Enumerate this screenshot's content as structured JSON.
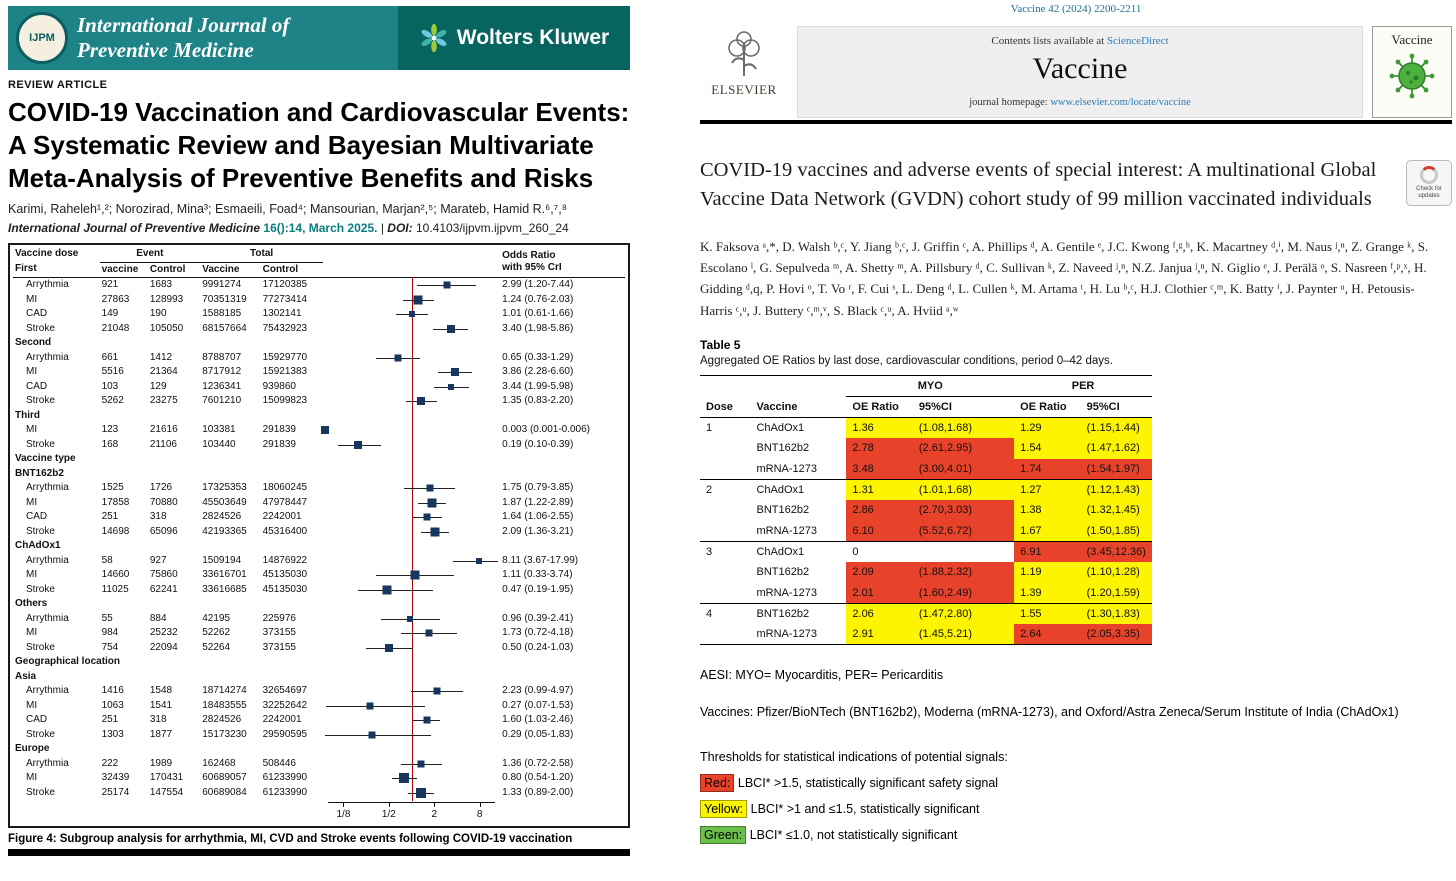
{
  "left_page": {
    "banner": {
      "logo_text": "IJPM",
      "journal_name_line1": "International Journal of",
      "journal_name_line2": "Preventive Medicine",
      "publisher": "Wolters Kluwer"
    },
    "article_type": "REVIEW ARTICLE",
    "title": "COVID-19 Vaccination and Cardiovascular Events: A Systematic Review and Bayesian Multivariate Meta-Analysis of Preventive Benefits and Risks",
    "authors": "Karimi, Raheleh¹,²; Norozirad, Mina³; Esmaeili, Foad⁴; Mansourian, Marjan²,⁵; Marateb, Hamid R.⁶,⁷,⁸",
    "citation_journal": "International Journal of Preventive Medicine",
    "citation_issue": "16():14, March 2025.",
    "citation_sep": "|",
    "citation_doi_label": "DOI:",
    "citation_doi": "10.4103/ijpvm.ijpvm_260_24",
    "caption_label": "Figure 4:",
    "caption_text": "Subgroup analysis for arrhythmia, MI, CVD and Stroke events following COVID-19 vaccination",
    "figure": {
      "col_headers": [
        "Vaccine dose",
        "Event",
        "Total"
      ],
      "or_header_line1": "Odds Ratio",
      "or_header_line2": "with 95% CrI",
      "sub_headers": [
        "vaccine",
        "Control",
        "Vaccine",
        "Control"
      ],
      "axis": {
        "ticks": [
          {
            "label": "1/8",
            "v": 0.125
          },
          {
            "label": "1/2",
            "v": 0.5
          },
          {
            "label": "2",
            "v": 2
          },
          {
            "label": "8",
            "v": 8
          }
        ]
      },
      "groups": [
        {
          "label": "First",
          "rows": [
            {
              "event": "Arrythmia",
              "vaccine": "921",
              "control": "1683",
              "total_vaccine": "9991274",
              "total_control": "17120385",
              "or_text": "2.99 (1.20-7.44)",
              "or": 2.99,
              "lo": 1.2,
              "hi": 7.44,
              "sz": 7
            },
            {
              "event": "MI",
              "vaccine": "27863",
              "control": "128993",
              "total_vaccine": "70351319",
              "total_control": "77273414",
              "or_text": "1.24 (0.76-2.03)",
              "or": 1.24,
              "lo": 0.76,
              "hi": 2.03,
              "sz": 9
            },
            {
              "event": "CAD",
              "vaccine": "149",
              "control": "190",
              "total_vaccine": "1588185",
              "total_control": "1302141",
              "or_text": "1.01 (0.61-1.66)",
              "or": 1.01,
              "lo": 0.61,
              "hi": 1.66,
              "sz": 6
            },
            {
              "event": "Stroke",
              "vaccine": "21048",
              "control": "105050",
              "total_vaccine": "68157664",
              "total_control": "75432923",
              "or_text": "3.40 (1.98-5.86)",
              "or": 3.4,
              "lo": 1.98,
              "hi": 5.86,
              "sz": 8
            }
          ]
        },
        {
          "label": "Second",
          "rows": [
            {
              "event": "Arrythmia",
              "vaccine": "661",
              "control": "1412",
              "total_vaccine": "8788707",
              "total_control": "15929770",
              "or_text": "0.65 (0.33-1.29)",
              "or": 0.65,
              "lo": 0.33,
              "hi": 1.29,
              "sz": 7
            },
            {
              "event": "MI",
              "vaccine": "5516",
              "control": "21364",
              "total_vaccine": "8717912",
              "total_control": "15921383",
              "or_text": "3.86 (2.28-6.60)",
              "or": 3.86,
              "lo": 2.28,
              "hi": 6.6,
              "sz": 8
            },
            {
              "event": "CAD",
              "vaccine": "103",
              "control": "129",
              "total_vaccine": "1236341",
              "total_control": "939860",
              "or_text": "3.44 (1.99-5.98)",
              "or": 3.44,
              "lo": 1.99,
              "hi": 5.98,
              "sz": 6
            },
            {
              "event": "Stroke",
              "vaccine": "5262",
              "control": "23275",
              "total_vaccine": "7601210",
              "total_control": "15099823",
              "or_text": "1.35 (0.83-2.20)",
              "or": 1.35,
              "lo": 0.83,
              "hi": 2.2,
              "sz": 8
            }
          ]
        },
        {
          "label": "Third",
          "rows": [
            {
              "event": "MI",
              "vaccine": "123",
              "control": "21616",
              "total_vaccine": "103381",
              "total_control": "291839",
              "or_text": "0.003 (0.001-0.006)",
              "or": 0.003,
              "lo": 0.001,
              "hi": 0.006,
              "sz": 8
            },
            {
              "event": "Stroke",
              "vaccine": "168",
              "control": "21106",
              "total_vaccine": "103440",
              "total_control": "291839",
              "or_text": "0.19 (0.10-0.39)",
              "or": 0.19,
              "lo": 0.1,
              "hi": 0.39,
              "sz": 8
            }
          ]
        },
        {
          "label": "Vaccine type",
          "rows": []
        },
        {
          "label": "BNT162b2",
          "rows": [
            {
              "event": "Arrythmia",
              "vaccine": "1525",
              "control": "1726",
              "total_vaccine": "17325353",
              "total_control": "18060245",
              "or_text": "1.75 (0.79-3.85)",
              "or": 1.75,
              "lo": 0.79,
              "hi": 3.85,
              "sz": 7
            },
            {
              "event": "MI",
              "vaccine": "17858",
              "control": "70880",
              "total_vaccine": "45503649",
              "total_control": "47978447",
              "or_text": "1.87 (1.22-2.89)",
              "or": 1.87,
              "lo": 1.22,
              "hi": 2.89,
              "sz": 9
            },
            {
              "event": "CAD",
              "vaccine": "251",
              "control": "318",
              "total_vaccine": "2824526",
              "total_control": "2242001",
              "or_text": "1.64 (1.06-2.55)",
              "or": 1.64,
              "lo": 1.06,
              "hi": 2.55,
              "sz": 7
            },
            {
              "event": "Stroke",
              "vaccine": "14698",
              "control": "65096",
              "total_vaccine": "42193365",
              "total_control": "45316400",
              "or_text": "2.09 (1.36-3.21)",
              "or": 2.09,
              "lo": 1.36,
              "hi": 3.21,
              "sz": 9
            }
          ]
        },
        {
          "label": "ChAdOx1",
          "rows": [
            {
              "event": "Arrythmia",
              "vaccine": "58",
              "control": "927",
              "total_vaccine": "1509194",
              "total_control": "14876922",
              "or_text": "8.11 (3.67-17.99)",
              "or": 8.11,
              "lo": 3.67,
              "hi": 17.99,
              "sz": 6
            },
            {
              "event": "MI",
              "vaccine": "14660",
              "control": "75860",
              "total_vaccine": "33616701",
              "total_control": "45135030",
              "or_text": "1.11 (0.33-3.74)",
              "or": 1.11,
              "lo": 0.33,
              "hi": 3.74,
              "sz": 9
            },
            {
              "event": "Stroke",
              "vaccine": "11025",
              "control": "62241",
              "total_vaccine": "33616685",
              "total_control": "45135030",
              "or_text": "0.47 (0.19-1.95)",
              "or": 0.47,
              "lo": 0.19,
              "hi": 1.95,
              "sz": 9
            }
          ]
        },
        {
          "label": "Others",
          "rows": [
            {
              "event": "Arrythmia",
              "vaccine": "55",
              "control": "884",
              "total_vaccine": "42195",
              "total_control": "225976",
              "or_text": "0.96 (0.39-2.41)",
              "or": 0.96,
              "lo": 0.39,
              "hi": 2.41,
              "sz": 6
            },
            {
              "event": "MI",
              "vaccine": "984",
              "control": "25232",
              "total_vaccine": "52262",
              "total_control": "373155",
              "or_text": "1.73 (0.72-4.18)",
              "or": 1.73,
              "lo": 0.72,
              "hi": 4.18,
              "sz": 7
            },
            {
              "event": "Stroke",
              "vaccine": "754",
              "control": "22094",
              "total_vaccine": "52264",
              "total_control": "373155",
              "or_text": "0.50 (0.24-1.03)",
              "or": 0.5,
              "lo": 0.24,
              "hi": 1.03,
              "sz": 8
            }
          ]
        },
        {
          "label": "Geographical location",
          "rows": []
        },
        {
          "label": "Asia",
          "rows": [
            {
              "event": "Arrythmia",
              "vaccine": "1416",
              "control": "1548",
              "total_vaccine": "18714274",
              "total_control": "32654697",
              "or_text": "2.23 (0.99-4.97)",
              "or": 2.23,
              "lo": 0.99,
              "hi": 4.97,
              "sz": 7
            },
            {
              "event": "MI",
              "vaccine": "1063",
              "control": "1541",
              "total_vaccine": "18483555",
              "total_control": "32252642",
              "or_text": "0.27 (0.07-1.53)",
              "or": 0.27,
              "lo": 0.07,
              "hi": 1.53,
              "sz": 7
            },
            {
              "event": "CAD",
              "vaccine": "251",
              "control": "318",
              "total_vaccine": "2824526",
              "total_control": "2242001",
              "or_text": "1.60 (1.03-2.46)",
              "or": 1.6,
              "lo": 1.03,
              "hi": 2.46,
              "sz": 7
            },
            {
              "event": "Stroke",
              "vaccine": "1303",
              "control": "1877",
              "total_vaccine": "15173230",
              "total_control": "29590595",
              "or_text": "0.29 (0.05-1.83)",
              "or": 0.29,
              "lo": 0.05,
              "hi": 1.83,
              "sz": 7
            }
          ]
        },
        {
          "label": "Europe",
          "rows": [
            {
              "event": "Arrythmia",
              "vaccine": "222",
              "control": "1989",
              "total_vaccine": "162468",
              "total_control": "508446",
              "or_text": "1.36 (0.72-2.58)",
              "or": 1.36,
              "lo": 0.72,
              "hi": 2.58,
              "sz": 7
            },
            {
              "event": "MI",
              "vaccine": "32439",
              "control": "170431",
              "total_vaccine": "60689057",
              "total_control": "61233990",
              "or_text": "0.80 (0.54-1.20)",
              "or": 0.8,
              "lo": 0.54,
              "hi": 1.2,
              "sz": 10
            },
            {
              "event": "Stroke",
              "vaccine": "25174",
              "control": "147554",
              "total_vaccine": "60689084",
              "total_control": "61233990",
              "or_text": "1.33 (0.89-2.00)",
              "or": 1.33,
              "lo": 0.89,
              "hi": 2.0,
              "sz": 10
            }
          ]
        }
      ]
    }
  },
  "right_page": {
    "journal_ref": "Vaccine 42 (2024) 2200-2211",
    "masthead": {
      "publisher": "ELSEVIER",
      "contents_line": "Contents lists available at",
      "sciencedirect": "ScienceDirect",
      "journal_name": "Vaccine",
      "homepage_label": "journal homepage:",
      "homepage_url": "www.elsevier.com/locate/vaccine",
      "cover_title": "Vaccine"
    },
    "check_badge": "Check for updates",
    "title": "COVID-19 vaccines and adverse events of special interest: A multinational Global Vaccine Data Network (GVDN) cohort study of 99 million vaccinated individuals",
    "authors": "K. Faksova ᵃ,*, D. Walsh ᵇ,ᶜ, Y. Jiang ᵇ,ᶜ, J. Griffin ᶜ, A. Phillips ᵈ, A. Gentile ᵉ, J.C. Kwong ᶠ,ᵍ,ʰ, K. Macartney ᵈ,ⁱ, M. Naus ʲ,ⁿ, Z. Grange ᵏ, S. Escolano ˡ, G. Sepulveda ᵐ, A. Shetty ᵐ, A. Pillsbury ᵈ, C. Sullivan ᵏ, Z. Naveed ʲ,ⁿ, N.Z. Janjua ʲ,ⁿ, N. Giglio ᵉ, J. Perälä ᵒ, S. Nasreen ᶠ,ᵖ,ˣ, H. Gidding ᵈ,q, P. Hovi ᵒ, T. Vo ʳ, F. Cui ˢ, L. Deng ᵈ, L. Cullen ᵏ, M. Artama ᵗ, H. Lu ᵇ,ᶜ, H.J. Clothier ᶜ,ᵐ, K. Batty ⁱ, J. Paynter ᵘ, H. Petousis-Harris ᶜ,ᵘ, J. Buttery ᶜ,ᵐ,ᵛ, S. Black ᶜ,ᵘ, A. Hviid ᵃ,ʷ",
    "table": {
      "label": "Table 5",
      "subtitle": "Aggregated OE Ratios by last dose, cardiovascular conditions, period 0–42 days.",
      "group_headers": [
        "MYO",
        "PER"
      ],
      "col_headers": [
        "Dose",
        "Vaccine",
        "OE Ratio",
        "95%CI",
        "OE Ratio",
        "95%CI"
      ],
      "rows": [
        {
          "dose": "1",
          "vaccine": "ChAdOx1",
          "myo_or": "1.36",
          "myo_ci": "(1.08,1.68)",
          "myo_sig": "yellow",
          "per_or": "1.29",
          "per_ci": "(1.15,1.44)",
          "per_sig": "yellow"
        },
        {
          "dose": "",
          "vaccine": "BNT162b2",
          "myo_or": "2.78",
          "myo_ci": "(2.61,2.95)",
          "myo_sig": "red",
          "per_or": "1.54",
          "per_ci": "(1.47,1.62)",
          "per_sig": "yellow"
        },
        {
          "dose": "",
          "vaccine": "mRNA-1273",
          "myo_or": "3.48",
          "myo_ci": "(3.00,4.01)",
          "myo_sig": "red",
          "per_or": "1.74",
          "per_ci": "(1.54,1.97)",
          "per_sig": "red"
        },
        {
          "dose": "2",
          "vaccine": "ChAdOx1",
          "myo_or": "1.31",
          "myo_ci": "(1.01,1.68)",
          "myo_sig": "yellow",
          "per_or": "1.27",
          "per_ci": "(1.12,1.43)",
          "per_sig": "yellow"
        },
        {
          "dose": "",
          "vaccine": "BNT162b2",
          "myo_or": "2.86",
          "myo_ci": "(2.70,3.03)",
          "myo_sig": "red",
          "per_or": "1.38",
          "per_ci": "(1.32,1.45)",
          "per_sig": "yellow"
        },
        {
          "dose": "",
          "vaccine": "mRNA-1273",
          "myo_or": "6.10",
          "myo_ci": "(5.52,6.72)",
          "myo_sig": "red",
          "per_or": "1.67",
          "per_ci": "(1.50,1.85)",
          "per_sig": "yellow"
        },
        {
          "dose": "3",
          "vaccine": "ChAdOx1",
          "myo_or": "0",
          "myo_ci": "",
          "myo_sig": "none",
          "per_or": "6.91",
          "per_ci": "(3.45,12.36)",
          "per_sig": "red"
        },
        {
          "dose": "",
          "vaccine": "BNT162b2",
          "myo_or": "2.09",
          "myo_ci": "(1.88,2.32)",
          "myo_sig": "red",
          "per_or": "1.19",
          "per_ci": "(1.10,1.28)",
          "per_sig": "yellow"
        },
        {
          "dose": "",
          "vaccine": "mRNA-1273",
          "myo_or": "2.01",
          "myo_ci": "(1.60,2.49)",
          "myo_sig": "red",
          "per_or": "1.39",
          "per_ci": "(1.20,1.59)",
          "per_sig": "yellow"
        },
        {
          "dose": "4",
          "vaccine": "BNT162b2",
          "myo_or": "2.06",
          "myo_ci": "(1.47,2.80)",
          "myo_sig": "yellow",
          "per_or": "1.55",
          "per_ci": "(1.30,1.83)",
          "per_sig": "yellow"
        },
        {
          "dose": "",
          "vaccine": "mRNA-1273",
          "myo_or": "2.91",
          "myo_ci": "(1.45,5.21)",
          "myo_sig": "yellow",
          "per_or": "2.64",
          "per_ci": "(2.05,3.35)",
          "per_sig": "red"
        }
      ]
    },
    "notes": {
      "aesi": "AESI: MYO= Myocarditis, PER= Pericarditis",
      "vaccines": "Vaccines: Pfizer/BioNTech (BNT162b2), Moderna (mRNA-1273), and Oxford/Astra Zeneca/Serum Institute of India (ChAdOx1)",
      "thresholds": "Thresholds for statistical indications of potential signals:"
    },
    "legend": [
      {
        "label": "Red:",
        "color": "red",
        "hex": "#e8432a",
        "text": "LBCI* >1.5, statistically significant safety signal"
      },
      {
        "label": "Yellow:",
        "color": "yellow",
        "hex": "#fcf400",
        "text": "LBCI* >1 and ≤1.5, statistically significant"
      },
      {
        "label": "Green:",
        "color": "green",
        "hex": "#6dbf4b",
        "text": "LBCI* ≤1.0, not statistically significant"
      }
    ]
  }
}
